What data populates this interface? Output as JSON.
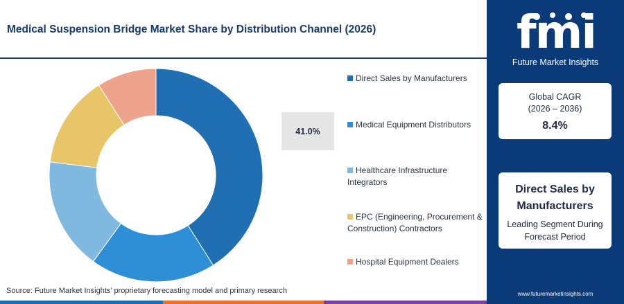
{
  "title": "Medical Suspension Bridge Market Share by Distribution Channel (2026)",
  "callout": "41.0%",
  "source": "Source: Future Market Insights’ proprietary forecasting model and primary research",
  "chart_data": {
    "type": "pie",
    "variant": "donut",
    "title": "Medical Suspension Bridge Market Share by Distribution Channel (2026)",
    "categories": [
      "Direct Sales by Manufacturers",
      "Medical Equipment Distributors",
      "Healthcare Infrastructure Integrators",
      "EPC (Engineering, Procurement & Construction) Contractors",
      "Hospital Equipment Dealers"
    ],
    "values": [
      41.0,
      19.0,
      17.0,
      14.0,
      9.0
    ],
    "colors": [
      "#1f6fb2",
      "#2e8fd6",
      "#7fb9e0",
      "#e8c568",
      "#eea38c"
    ],
    "legend_position": "right"
  },
  "legend": [
    {
      "label": "Direct Sales by Manufacturers",
      "color": "#1f6fb2"
    },
    {
      "label": "Medical Equipment Distributors",
      "color": "#2e8fd6"
    },
    {
      "label": "Healthcare Infrastructure Integrators",
      "color": "#7fb9e0"
    },
    {
      "label": "EPC (Engineering, Procurement & Construction) Contractors",
      "color": "#e8c568"
    },
    {
      "label": "Hospital Equipment Dealers",
      "color": "#eea38c"
    }
  ],
  "sidebar": {
    "logo_text": "fmi",
    "brand": "Future Market Insights",
    "cagr_label_1": "Global CAGR",
    "cagr_label_2": "(2026 – 2036)",
    "cagr_value": "8.4%",
    "segment_name": "Direct Sales by Manufacturers",
    "segment_sub": "Leading Segment During Forecast Period",
    "website": "www.futuremarketinsights.com"
  },
  "colors": {
    "sidebar_bg": "#0b3a78",
    "title": "#163a6b",
    "bottom_line": [
      "#1f6fb2",
      "#e8712e",
      "#7a3fa0",
      "#0b3a78"
    ]
  }
}
